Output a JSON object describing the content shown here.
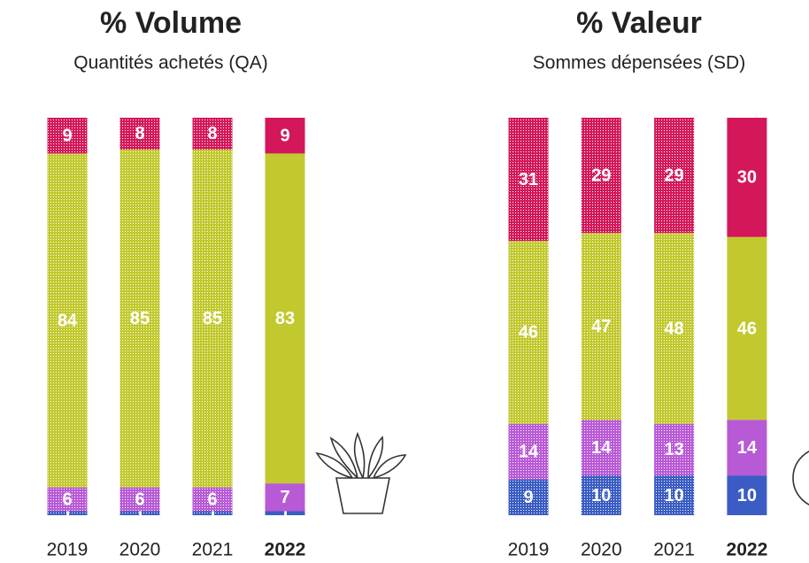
{
  "chart_data": [
    {
      "type": "stacked_bar",
      "title": "% Volume",
      "subtitle": "Quantités achetés (QA)",
      "categories": [
        "2019",
        "2020",
        "2021",
        "2022"
      ],
      "highlight": "2022",
      "ylim": [
        0,
        100
      ],
      "series": [
        {
          "color": "#3a5cc4",
          "values": [
            1,
            1,
            1,
            1
          ]
        },
        {
          "color": "#b85ad6",
          "values": [
            6,
            6,
            6,
            7
          ]
        },
        {
          "color": "#c2c92e",
          "values": [
            84,
            85,
            85,
            83
          ]
        },
        {
          "color": "#d4175a",
          "values": [
            9,
            8,
            8,
            9
          ]
        }
      ]
    },
    {
      "type": "stacked_bar",
      "title": "% Valeur",
      "subtitle": "Sommes dépensées (SD)",
      "categories": [
        "2019",
        "2020",
        "2021",
        "2022"
      ],
      "highlight": "2022",
      "ylim": [
        0,
        100
      ],
      "series": [
        {
          "color": "#3a5cc4",
          "values": [
            9,
            10,
            10,
            10
          ]
        },
        {
          "color": "#b85ad6",
          "values": [
            14,
            14,
            13,
            14
          ]
        },
        {
          "color": "#c2c92e",
          "values": [
            46,
            47,
            48,
            46
          ]
        },
        {
          "color": "#d4175a",
          "values": [
            31,
            29,
            29,
            30
          ]
        }
      ]
    }
  ]
}
